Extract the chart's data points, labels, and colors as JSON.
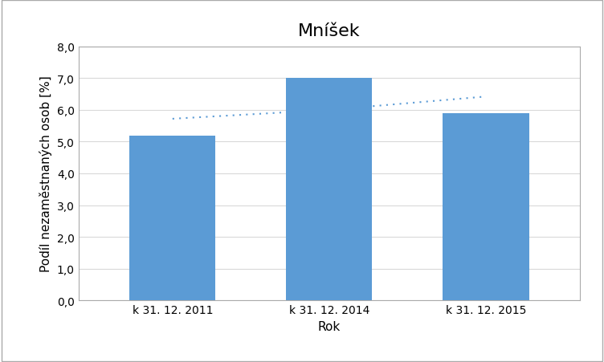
{
  "title": "Mníšek",
  "categories": [
    "k 31. 12. 2011",
    "k 31. 12. 2014",
    "k 31. 12. 2015"
  ],
  "values": [
    5.2,
    7.0,
    5.9
  ],
  "bar_color": "#5B9BD5",
  "dotted_line_x": [
    0,
    1,
    2
  ],
  "dotted_line_y": [
    5.72,
    6.0,
    6.42
  ],
  "xlabel": "Rok",
  "ylabel": "Podíl nezaměstnaných osob [%]",
  "ylim": [
    0,
    8.0
  ],
  "yticks": [
    0.0,
    1.0,
    2.0,
    3.0,
    4.0,
    5.0,
    6.0,
    7.0,
    8.0
  ],
  "ytick_labels": [
    "0,0",
    "1,0",
    "2,0",
    "3,0",
    "4,0",
    "5,0",
    "6,0",
    "7,0",
    "8,0"
  ],
  "grid_color": "#D9D9D9",
  "title_fontsize": 16,
  "axis_label_fontsize": 11,
  "tick_fontsize": 10,
  "bar_width": 0.55,
  "background_color": "#FFFFFF",
  "figure_bg": "#FFFFFF",
  "dotted_line_color": "#5B9BD5",
  "border_color": "#AAAAAA"
}
